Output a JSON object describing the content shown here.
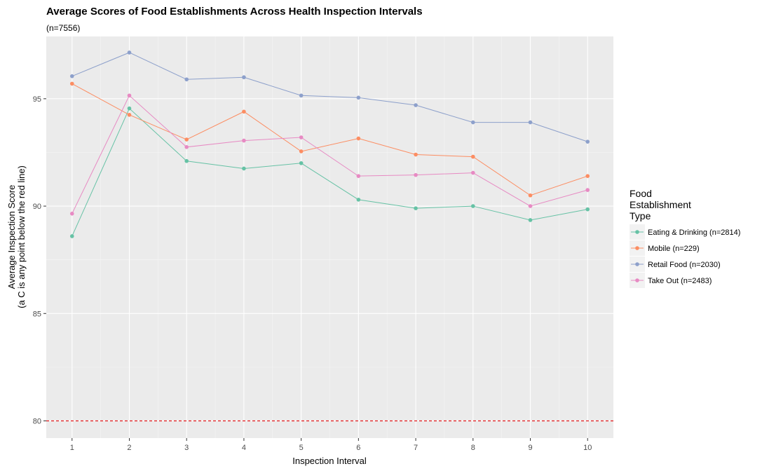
{
  "chart_data": {
    "type": "line",
    "title": "Average Scores of Food Establishments Across Health Inspection Intervals",
    "subtitle": "(n=7556)",
    "xlabel": "Inspection Interval",
    "ylabel_lines": [
      "Average Inspection Score",
      "(a C is any point below the red line)"
    ],
    "x": [
      1,
      2,
      3,
      4,
      5,
      6,
      7,
      8,
      9,
      10
    ],
    "xlim": [
      0.55,
      10.45
    ],
    "ylim": [
      79.2,
      97.9
    ],
    "yticks": [
      80,
      85,
      90,
      95
    ],
    "grid": true,
    "reference_line": {
      "y": 80,
      "color": "#e41a1c",
      "style": "dashed"
    },
    "legend": {
      "position": "right",
      "title_lines": [
        "Food",
        "Establishment",
        "Type"
      ]
    },
    "series": [
      {
        "name": "Eating & Drinking (n=2814)",
        "color": "#66c2a5",
        "values": [
          88.6,
          94.55,
          92.1,
          91.75,
          92.0,
          90.3,
          89.9,
          90.0,
          89.35,
          89.85
        ]
      },
      {
        "name": "Mobile (n=229)",
        "color": "#fc8d62",
        "values": [
          95.7,
          94.25,
          93.1,
          94.4,
          92.55,
          93.15,
          92.4,
          92.3,
          90.5,
          91.4
        ]
      },
      {
        "name": "Retail Food (n=2030)",
        "color": "#8da0cb",
        "values": [
          96.05,
          97.15,
          95.9,
          96.0,
          95.15,
          95.05,
          94.7,
          93.9,
          93.9,
          93.0
        ]
      },
      {
        "name": "Take Out (n=2483)",
        "color": "#e78ac3",
        "values": [
          89.65,
          95.15,
          92.75,
          93.05,
          93.2,
          91.4,
          91.45,
          91.55,
          90.0,
          90.75
        ]
      }
    ]
  }
}
